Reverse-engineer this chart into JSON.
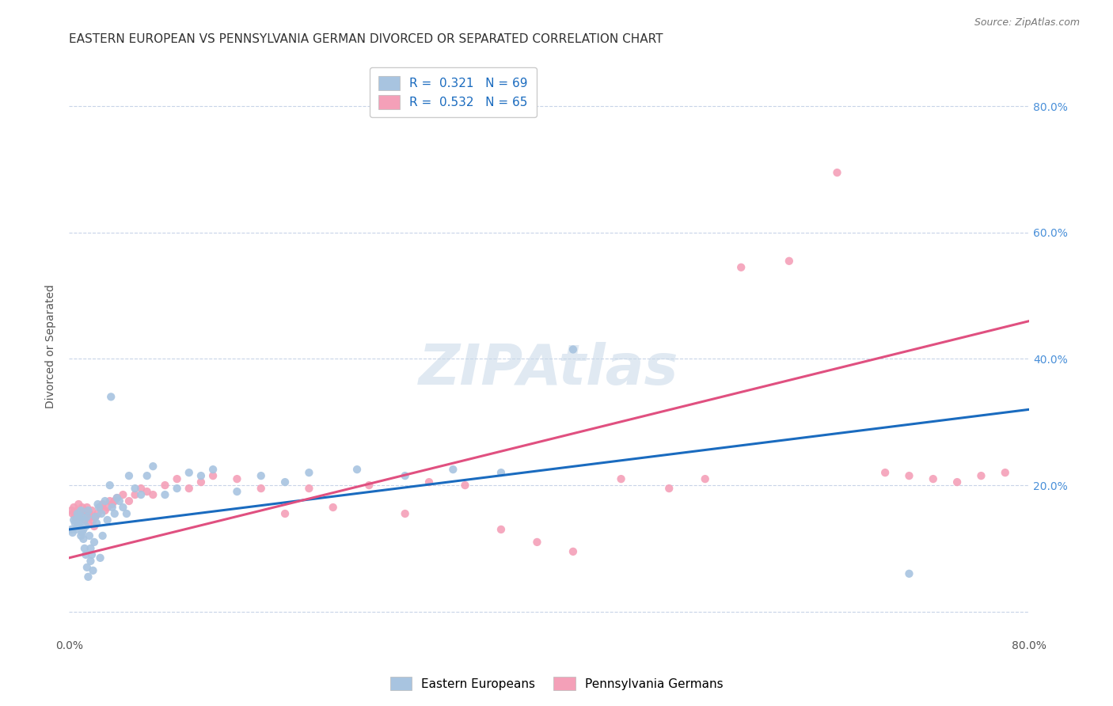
{
  "title": "EASTERN EUROPEAN VS PENNSYLVANIA GERMAN DIVORCED OR SEPARATED CORRELATION CHART",
  "source": "Source: ZipAtlas.com",
  "ylabel": "Divorced or Separated",
  "xlim": [
    0.0,
    0.8
  ],
  "ylim": [
    -0.04,
    0.88
  ],
  "ytick_positions": [
    0.0,
    0.2,
    0.4,
    0.6,
    0.8
  ],
  "ytick_labels": [
    "",
    "20.0%",
    "40.0%",
    "60.0%",
    "80.0%"
  ],
  "blue_R": "0.321",
  "blue_N": "69",
  "pink_R": "0.532",
  "pink_N": "65",
  "blue_color": "#a8c4e0",
  "pink_color": "#f4a0b8",
  "blue_line_color": "#1a6bbf",
  "pink_line_color": "#e05080",
  "blue_trend_x0": 0.0,
  "blue_trend_y0": 0.13,
  "blue_trend_x1": 0.8,
  "blue_trend_y1": 0.32,
  "pink_trend_x0": 0.0,
  "pink_trend_y0": 0.085,
  "pink_trend_x1": 0.8,
  "pink_trend_y1": 0.46,
  "bg_color": "#ffffff",
  "grid_color": "#c8d4e8",
  "title_fontsize": 11,
  "axis_label_fontsize": 10,
  "tick_fontsize": 10,
  "legend_fontsize": 11,
  "right_tick_color": "#4a90d9",
  "blue_scatter_x": [
    0.002,
    0.003,
    0.004,
    0.005,
    0.006,
    0.006,
    0.007,
    0.007,
    0.008,
    0.008,
    0.009,
    0.009,
    0.01,
    0.01,
    0.011,
    0.011,
    0.012,
    0.012,
    0.013,
    0.013,
    0.014,
    0.014,
    0.015,
    0.015,
    0.016,
    0.016,
    0.017,
    0.018,
    0.018,
    0.019,
    0.02,
    0.021,
    0.022,
    0.023,
    0.024,
    0.025,
    0.026,
    0.027,
    0.028,
    0.03,
    0.032,
    0.034,
    0.035,
    0.036,
    0.038,
    0.04,
    0.042,
    0.045,
    0.048,
    0.05,
    0.055,
    0.06,
    0.065,
    0.07,
    0.08,
    0.09,
    0.1,
    0.11,
    0.12,
    0.14,
    0.16,
    0.18,
    0.2,
    0.24,
    0.28,
    0.32,
    0.36,
    0.42,
    0.7
  ],
  "blue_scatter_y": [
    0.13,
    0.125,
    0.145,
    0.14,
    0.145,
    0.13,
    0.155,
    0.135,
    0.14,
    0.15,
    0.145,
    0.135,
    0.16,
    0.12,
    0.125,
    0.15,
    0.13,
    0.115,
    0.145,
    0.1,
    0.135,
    0.09,
    0.15,
    0.07,
    0.16,
    0.055,
    0.12,
    0.1,
    0.08,
    0.09,
    0.065,
    0.11,
    0.15,
    0.14,
    0.17,
    0.165,
    0.085,
    0.155,
    0.12,
    0.175,
    0.145,
    0.2,
    0.34,
    0.165,
    0.155,
    0.18,
    0.175,
    0.165,
    0.155,
    0.215,
    0.195,
    0.185,
    0.215,
    0.23,
    0.185,
    0.195,
    0.22,
    0.215,
    0.225,
    0.19,
    0.215,
    0.205,
    0.22,
    0.225,
    0.215,
    0.225,
    0.22,
    0.415,
    0.06
  ],
  "pink_scatter_x": [
    0.002,
    0.003,
    0.004,
    0.005,
    0.006,
    0.007,
    0.008,
    0.009,
    0.01,
    0.011,
    0.012,
    0.013,
    0.014,
    0.015,
    0.016,
    0.017,
    0.018,
    0.019,
    0.02,
    0.021,
    0.022,
    0.024,
    0.026,
    0.028,
    0.03,
    0.032,
    0.034,
    0.036,
    0.038,
    0.04,
    0.045,
    0.05,
    0.055,
    0.06,
    0.065,
    0.07,
    0.08,
    0.09,
    0.1,
    0.11,
    0.12,
    0.14,
    0.16,
    0.18,
    0.2,
    0.22,
    0.25,
    0.28,
    0.3,
    0.33,
    0.36,
    0.39,
    0.42,
    0.46,
    0.5,
    0.53,
    0.56,
    0.6,
    0.64,
    0.68,
    0.7,
    0.72,
    0.74,
    0.76,
    0.78
  ],
  "pink_scatter_y": [
    0.16,
    0.155,
    0.165,
    0.15,
    0.155,
    0.16,
    0.17,
    0.155,
    0.15,
    0.165,
    0.155,
    0.145,
    0.16,
    0.165,
    0.14,
    0.155,
    0.15,
    0.16,
    0.145,
    0.135,
    0.15,
    0.155,
    0.165,
    0.17,
    0.16,
    0.165,
    0.175,
    0.17,
    0.175,
    0.18,
    0.185,
    0.175,
    0.185,
    0.195,
    0.19,
    0.185,
    0.2,
    0.21,
    0.195,
    0.205,
    0.215,
    0.21,
    0.195,
    0.155,
    0.195,
    0.165,
    0.2,
    0.155,
    0.205,
    0.2,
    0.13,
    0.11,
    0.095,
    0.21,
    0.195,
    0.21,
    0.545,
    0.555,
    0.695,
    0.22,
    0.215,
    0.21,
    0.205,
    0.215,
    0.22
  ]
}
